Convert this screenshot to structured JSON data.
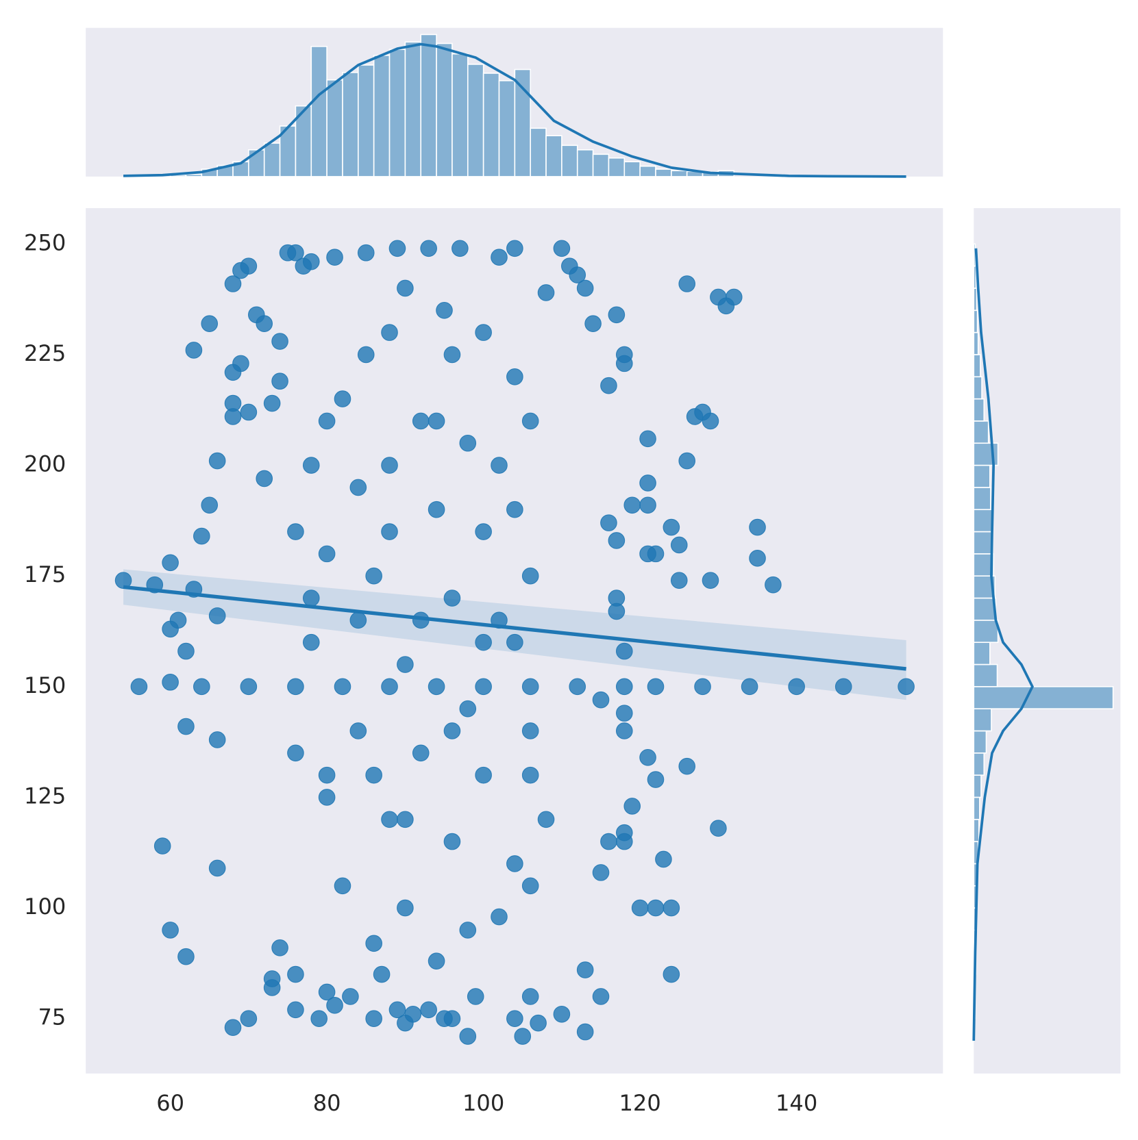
{
  "chart_data": [
    {
      "type": "scatter",
      "color": "#1f77b4",
      "grid": false,
      "xlim": [
        49.2,
        158.7
      ],
      "ylim": [
        62.6,
        258.1
      ],
      "xticks": [
        60,
        80,
        100,
        120,
        140
      ],
      "yticks": [
        75,
        100,
        125,
        150,
        175,
        200,
        225,
        250
      ],
      "x": [
        54,
        56,
        58,
        60,
        59,
        60,
        62,
        62,
        61,
        60,
        63,
        65,
        64,
        66,
        65,
        62,
        63,
        66,
        66,
        66,
        68,
        69,
        70,
        68,
        69,
        68,
        68,
        71,
        72,
        70,
        73,
        74,
        75,
        76,
        77,
        72,
        74,
        74,
        73,
        73,
        70,
        68,
        76,
        76,
        79,
        80,
        81,
        83,
        86,
        87,
        89,
        90,
        91,
        93,
        95,
        96,
        98,
        99,
        104,
        105,
        106,
        107,
        110,
        113,
        115,
        113,
        124,
        122,
        120,
        124,
        123,
        121,
        122,
        119,
        118,
        118,
        115,
        116,
        126,
        130,
        129,
        125,
        124,
        125,
        121,
        122,
        119,
        121,
        121,
        121,
        126,
        126,
        130,
        131,
        132,
        127,
        128,
        129,
        135,
        135,
        137,
        146,
        154,
        140,
        134,
        128,
        122,
        118,
        112,
        106,
        100,
        94,
        88,
        82,
        76,
        70,
        64,
        60,
        118,
        118,
        118,
        115,
        117,
        117,
        117,
        116,
        118,
        118,
        116,
        117,
        114,
        113,
        111,
        112,
        110,
        108,
        104,
        102,
        97,
        93,
        89,
        85,
        81,
        78,
        90,
        95,
        100,
        85,
        82,
        92,
        98,
        88,
        84,
        94,
        100,
        80,
        86,
        96,
        102,
        78,
        90,
        98,
        84,
        92,
        100,
        80,
        88,
        96,
        104,
        82,
        90,
        98,
        86,
        94,
        102,
        106,
        108,
        106,
        106,
        104,
        106,
        104,
        102,
        106,
        104,
        80,
        76,
        78,
        76,
        78,
        80,
        84,
        88,
        92,
        96,
        100,
        86,
        90,
        94,
        88,
        96
      ],
      "y": [
        174,
        150,
        173,
        178,
        114,
        95,
        89,
        141,
        165,
        163,
        226,
        232,
        184,
        201,
        191,
        158,
        172,
        166,
        138,
        109,
        241,
        244,
        245,
        221,
        223,
        214,
        211,
        234,
        232,
        212,
        214,
        228,
        248,
        248,
        245,
        197,
        219,
        91,
        82,
        84,
        75,
        73,
        77,
        85,
        75,
        81,
        78,
        80,
        75,
        85,
        77,
        74,
        76,
        77,
        75,
        75,
        71,
        80,
        75,
        71,
        80,
        74,
        76,
        72,
        80,
        86,
        85,
        100,
        100,
        100,
        111,
        134,
        129,
        123,
        117,
        115,
        108,
        115,
        132,
        118,
        174,
        174,
        186,
        182,
        180,
        180,
        191,
        191,
        196,
        206,
        201,
        241,
        238,
        236,
        238,
        211,
        212,
        210,
        186,
        179,
        173,
        150,
        150,
        150,
        150,
        150,
        150,
        150,
        150,
        150,
        150,
        150,
        150,
        150,
        150,
        150,
        150,
        151,
        144,
        140,
        158,
        147,
        170,
        167,
        183,
        187,
        225,
        223,
        218,
        234,
        232,
        240,
        245,
        243,
        249,
        239,
        249,
        247,
        249,
        249,
        249,
        248,
        247,
        246,
        240,
        235,
        230,
        225,
        215,
        210,
        205,
        200,
        195,
        190,
        185,
        180,
        175,
        170,
        165,
        160,
        155,
        145,
        140,
        135,
        130,
        125,
        120,
        115,
        110,
        105,
        100,
        95,
        92,
        88,
        98,
        105,
        120,
        130,
        140,
        160,
        175,
        190,
        200,
        210,
        220,
        130,
        135,
        170,
        185,
        200,
        210,
        165,
        185,
        165,
        140,
        160,
        130,
        120,
        210,
        230,
        225
      ],
      "regression": {
        "color": "#1f77b4",
        "x": [
          54,
          154
        ],
        "y": [
          172.5,
          154
        ],
        "ci_lower": [
          168.5,
          147
        ],
        "ci_upper": [
          176.5,
          160.5
        ]
      }
    },
    {
      "type": "histogram",
      "orientation": "vertical",
      "color": "#1f77b4",
      "xlim": [
        49.2,
        158.7
      ],
      "ylim": [
        0,
        200
      ],
      "bins": [
        60,
        62,
        64,
        66,
        68,
        70,
        72,
        74,
        76,
        78,
        80,
        82,
        84,
        86,
        88,
        90,
        92,
        94,
        96,
        98,
        100,
        102,
        104,
        106,
        108,
        110,
        112,
        114,
        116,
        118,
        120,
        122,
        124,
        126,
        128,
        130,
        132
      ],
      "counts": [
        2,
        3,
        10,
        15,
        20,
        36,
        45,
        68,
        95,
        175,
        130,
        140,
        150,
        163,
        171,
        181,
        191,
        179,
        165,
        151,
        139,
        129,
        144,
        65,
        55,
        42,
        36,
        30,
        25,
        20,
        14,
        10,
        8,
        7,
        6,
        8
      ],
      "kde": {
        "x": [
          54,
          59,
          64,
          69,
          74,
          79,
          84,
          89,
          92,
          94,
          99,
          104,
          109,
          114,
          119,
          124,
          129,
          134,
          139,
          144,
          154
        ],
        "density": [
          1,
          2,
          6,
          18,
          55,
          110,
          150,
          172,
          178,
          175,
          160,
          130,
          75,
          47,
          27,
          12,
          5,
          3,
          1,
          0.5,
          0
        ]
      }
    },
    {
      "type": "histogram",
      "orientation": "horizontal",
      "color": "#1f77b4",
      "ylim": [
        62.6,
        258.1
      ],
      "xlim": [
        0,
        200
      ],
      "bins": [
        70,
        75,
        80,
        85,
        90,
        95,
        100,
        105,
        110,
        115,
        120,
        125,
        130,
        135,
        140,
        145,
        150,
        155,
        160,
        165,
        170,
        175,
        180,
        185,
        190,
        195,
        200,
        205,
        210,
        215,
        220,
        225,
        230,
        235,
        240,
        245,
        250
      ],
      "counts": [
        1,
        2,
        2,
        3,
        3,
        4,
        4,
        5,
        6,
        7,
        8,
        10,
        14,
        17,
        24,
        190,
        32,
        22,
        33,
        30,
        29,
        27,
        26,
        25,
        23,
        22,
        33,
        20,
        14,
        11,
        9,
        6,
        5,
        4,
        3,
        2
      ],
      "kde": {
        "y": [
          70,
          90,
          110,
          125,
          135,
          140,
          145,
          150,
          155,
          160,
          165,
          175,
          185,
          200,
          215,
          230,
          240,
          249
        ],
        "density": [
          0,
          2,
          5,
          15,
          25,
          40,
          65,
          80,
          65,
          40,
          30,
          24,
          25,
          27,
          20,
          10,
          6,
          3
        ]
      }
    }
  ]
}
